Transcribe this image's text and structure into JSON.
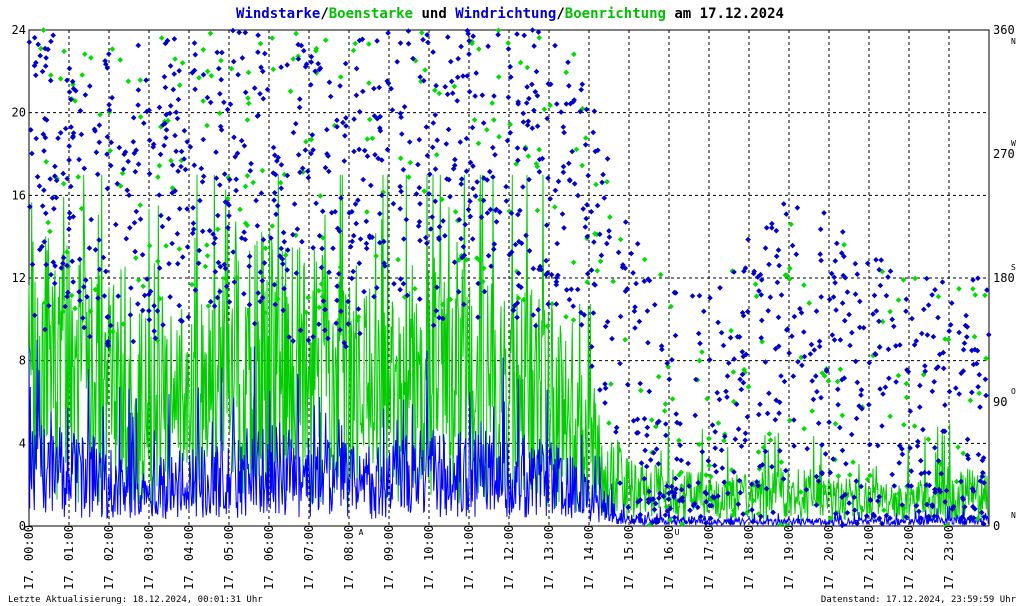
{
  "chart_data": {
    "type": "line",
    "title_parts": [
      {
        "text": "Windstarke",
        "color": "#0000cc"
      },
      {
        "text": "/",
        "color": "#000000"
      },
      {
        "text": "Boenstarke",
        "color": "#00c000"
      },
      {
        "text": " und ",
        "color": "#000000"
      },
      {
        "text": "Windrichtung",
        "color": "#0000cc"
      },
      {
        "text": "/",
        "color": "#000000"
      },
      {
        "text": "Boenrichtung",
        "color": "#00c000"
      },
      {
        "text": " am 17.12.2024",
        "color": "#000000"
      }
    ],
    "left_axis": {
      "min": 0,
      "max": 24,
      "ticks": [
        "0",
        "4",
        "8",
        "12",
        "16",
        "20",
        "24"
      ]
    },
    "right_axis": {
      "min": 0,
      "max": 360,
      "ticks": [
        {
          "value": 0,
          "label": "0",
          "dir": "N"
        },
        {
          "value": 90,
          "label": "90",
          "dir": "O"
        },
        {
          "value": 180,
          "label": "180",
          "dir": "S"
        },
        {
          "value": 270,
          "label": "270",
          "dir": "W"
        },
        {
          "value": 360,
          "label": "360",
          "dir": "N"
        }
      ]
    },
    "x_ticks": [
      "17. 00:00",
      "17. 01:00",
      "17. 02:00",
      "17. 03:00",
      "17. 04:00",
      "17. 05:00",
      "17. 06:00",
      "17. 07:00",
      "17. 08:00",
      "17. 09:00",
      "17. 10:00",
      "17. 11:00",
      "17. 12:00",
      "17. 13:00",
      "17. 14:00",
      "17. 15:00",
      "17. 16:00",
      "17. 17:00",
      "17. 18:00",
      "17. 19:00",
      "17. 20:00",
      "17. 21:00",
      "17. 22:00",
      "17. 23:00"
    ],
    "grid": true,
    "markers": [
      {
        "hour": 8.3,
        "label": "A",
        "color": "#cc0000"
      },
      {
        "hour": 16.2,
        "label": "U",
        "color": "#cc0000"
      }
    ],
    "series": [
      {
        "key": "windstarke",
        "color": "#0000ff",
        "hourly_mean": [
          2.8,
          2.6,
          2.2,
          2.0,
          2.0,
          2.4,
          2.8,
          2.4,
          2.2,
          2.2,
          2.6,
          2.6,
          2.4,
          2.4,
          1.4,
          0.3,
          0.3,
          0.2,
          0.2,
          0.2,
          0.2,
          0.2,
          0.2,
          0.3
        ]
      },
      {
        "key": "boenstarke",
        "color": "#00cc00",
        "hourly_mean": [
          8.0,
          7.5,
          6.5,
          5.5,
          5.5,
          7.0,
          8.0,
          7.5,
          6.5,
          6.0,
          7.5,
          7.0,
          6.5,
          6.0,
          3.5,
          1.8,
          1.6,
          1.4,
          1.4,
          1.6,
          1.4,
          1.2,
          1.2,
          1.5
        ]
      },
      {
        "key": "windrichtung",
        "color": "#0000cc",
        "hourly_mean": [
          250,
          245,
          240,
          240,
          250,
          255,
          250,
          240,
          240,
          250,
          255,
          260,
          260,
          250,
          220,
          110,
          60,
          60,
          100,
          130,
          120,
          90,
          70,
          70
        ]
      },
      {
        "key": "boenrichtung",
        "color": "#00dd00",
        "hourly_mean": [
          260,
          250,
          250,
          240,
          260,
          260,
          260,
          250,
          240,
          280,
          270,
          270,
          260,
          250,
          230,
          120,
          70,
          60,
          90,
          110,
          110,
          80,
          70,
          70
        ]
      }
    ]
  },
  "footer": {
    "left": "Letzte Aktualisierung: 18.12.2024, 00:01:31 Uhr",
    "right": "Datenstand: 17.12.2024, 23:59:59 Uhr"
  }
}
